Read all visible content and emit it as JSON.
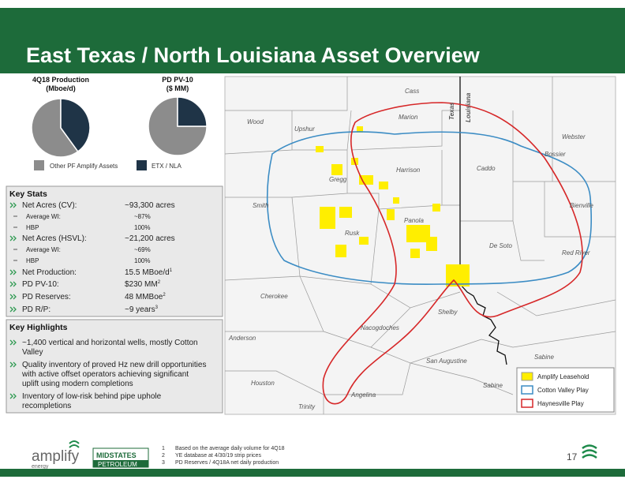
{
  "header": {
    "title": "East Texas / North Louisiana Asset Overview"
  },
  "chart_data": [
    {
      "type": "pie",
      "title": "4Q18 Production\n(Mboe/d)",
      "categories": [
        "Other PF Amplify Assets",
        "ETX / NLA"
      ],
      "values": [
        60,
        40
      ],
      "colors": [
        "#8c8c8c",
        "#1f3447"
      ]
    },
    {
      "type": "pie",
      "title": "PD PV-10\n($ MM)",
      "categories": [
        "Other PF Amplify Assets",
        "ETX / NLA"
      ],
      "values": [
        75,
        25
      ],
      "colors": [
        "#8c8c8c",
        "#1f3447"
      ]
    }
  ],
  "key_stats": {
    "title": "Key Stats",
    "rows": [
      {
        "label": "Net Acres (CV):",
        "value": "~93,300 acres",
        "level": 1
      },
      {
        "label": "Average WI:",
        "value": "~87%",
        "level": 2
      },
      {
        "label": "HBP",
        "value": "100%",
        "level": 2
      },
      {
        "label": "Net Acres (HSVL):",
        "value": "~21,200 acres",
        "level": 1
      },
      {
        "label": "Average WI:",
        "value": "~69%",
        "level": 2
      },
      {
        "label": "HBP",
        "value": "100%",
        "level": 2
      },
      {
        "label": "Net Production:",
        "value": "15.5 MBoe/d",
        "sup": "1",
        "level": 1
      },
      {
        "label": "PD PV-10:",
        "value": "$230 MM",
        "sup": "2",
        "level": 1
      },
      {
        "label": "PD Reserves:",
        "value": "48 MMBoe",
        "sup": "2",
        "level": 1
      },
      {
        "label": "PD R/P:",
        "value": "~9 years",
        "sup": "3",
        "level": 1
      }
    ]
  },
  "key_highlights": {
    "title": "Key Highlights",
    "items": [
      {
        "lines": [
          "~1,400 vertical and horizontal wells, mostly Cotton",
          "Valley"
        ]
      },
      {
        "lines": [
          "Quality inventory of proved Hz new drill opportunities",
          "with active offset operators achieving significant",
          "uplift using modern completions"
        ]
      },
      {
        "lines": [
          "Inventory of low-risk behind pipe uphole",
          "recompletions"
        ]
      }
    ]
  },
  "map": {
    "states": [
      "Texas",
      "Louisiana"
    ],
    "counties": [
      "Cass",
      "Marion",
      "Wood",
      "Upshur",
      "Harrison",
      "Gregg",
      "Smith",
      "Rusk",
      "Panola",
      "Caddo",
      "Bossier",
      "Webster",
      "Bienville",
      "De Soto",
      "Red River",
      "Cherokee",
      "Shelby",
      "Nacogdoches",
      "Anderson",
      "San Augustine",
      "Sabine",
      "Sabine",
      "Houston",
      "Angelina",
      "Trinity"
    ],
    "legend": [
      "Amplify Leasehold",
      "Cotton Valley Play",
      "Haynesville Play"
    ]
  },
  "footnotes": [
    {
      "number": "1",
      "text": "Based on the average daily volume for 4Q18"
    },
    {
      "number": "2",
      "text": "YE database at 4/30/19 strip prices"
    },
    {
      "number": "3",
      "text": "PD Reserves  / 4Q18A net daily production"
    }
  ],
  "footer": {
    "logo_amplify": "amplify",
    "logo_amplify_sub": "energy",
    "logo_midstates": "MIDSTATES",
    "logo_midstates_sub": "PETROLEUM",
    "page_number": "17"
  }
}
